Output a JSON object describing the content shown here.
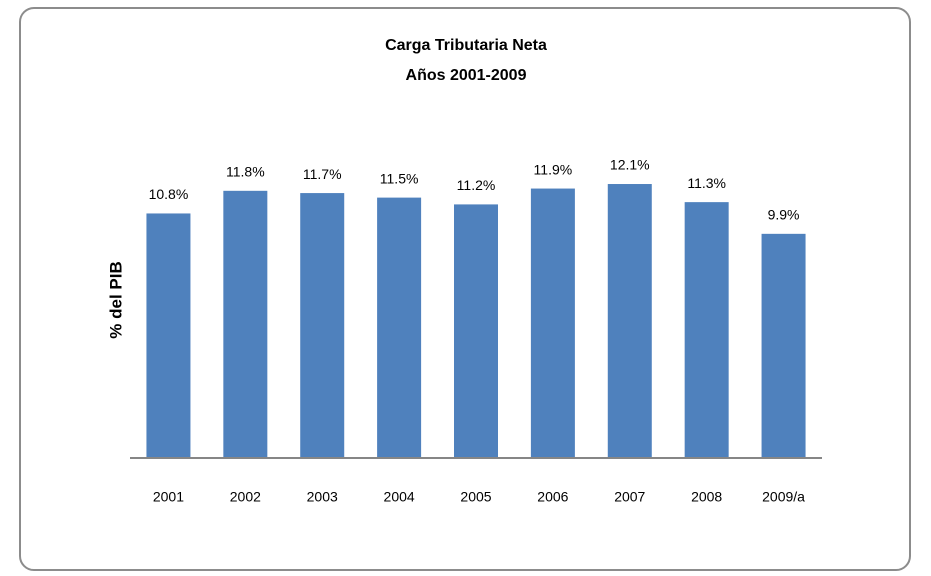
{
  "chart_data": {
    "type": "bar",
    "title": "Carga Tributaria Neta",
    "subtitle": "Años 2001-2009",
    "y_label": "% del PIB",
    "categories": [
      "2001",
      "2002",
      "2003",
      "2004",
      "2005",
      "2006",
      "2007",
      "2008",
      "2009/a"
    ],
    "values": [
      10.8,
      11.8,
      11.7,
      11.5,
      11.2,
      11.9,
      12.1,
      11.3,
      9.9
    ],
    "value_labels": [
      "10.8%",
      "11.8%",
      "11.7%",
      "11.5%",
      "11.2%",
      "11.9%",
      "12.1%",
      "11.3%",
      "9.9%"
    ],
    "color": "#4f81bd",
    "ylim": [
      0,
      14
    ]
  }
}
